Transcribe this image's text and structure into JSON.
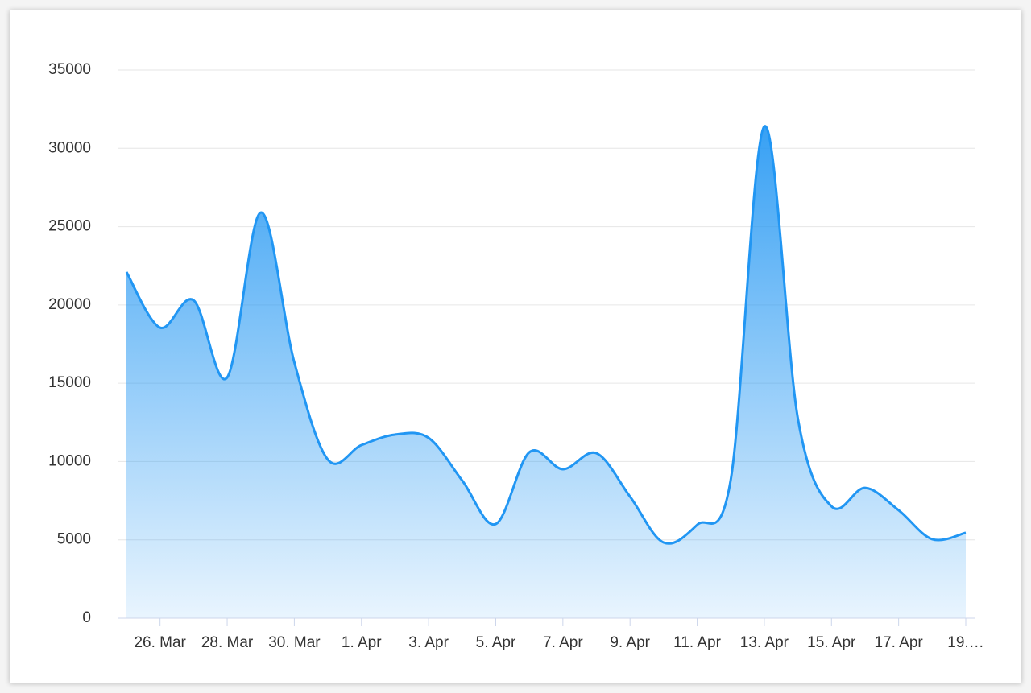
{
  "chart_data": {
    "type": "area",
    "categories": [
      null,
      "26. Mar",
      null,
      "28. Mar",
      null,
      "30. Mar",
      null,
      "1. Apr",
      null,
      "3. Apr",
      null,
      "5. Apr",
      null,
      "7. Apr",
      null,
      "9. Apr",
      null,
      "11. Apr",
      null,
      "13. Apr",
      null,
      "15. Apr",
      null,
      "17. Apr",
      null,
      "19.…"
    ],
    "values": [
      22100,
      18550,
      20300,
      15370,
      25900,
      16340,
      10120,
      11050,
      11720,
      11510,
      8790,
      6010,
      10590,
      9510,
      10530,
      7760,
      4830,
      5960,
      8840,
      31400,
      12740,
      7140,
      8320,
      6890,
      5040,
      5450
    ],
    "color": "#2196f3",
    "ylim": [
      0,
      35000
    ],
    "yticks": [
      0,
      5000,
      10000,
      15000,
      20000,
      25000,
      30000,
      35000
    ],
    "grid": true
  }
}
